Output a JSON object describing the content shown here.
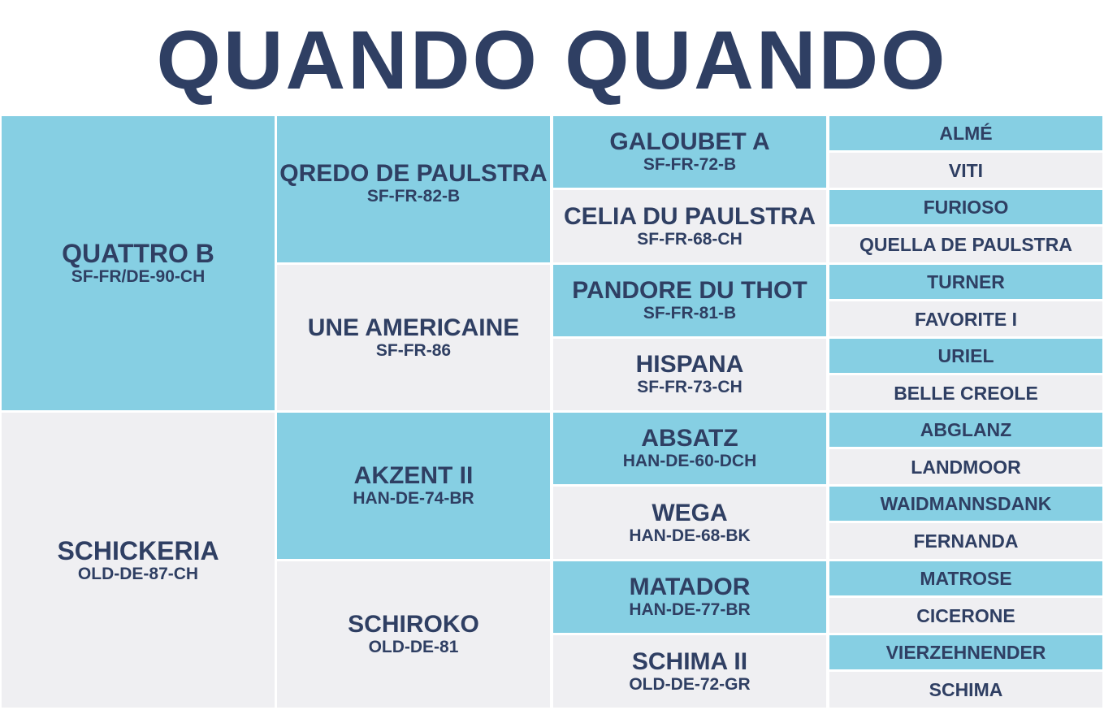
{
  "title": "QUANDO QUANDO",
  "colors": {
    "text": "#2f3f63",
    "blue": "#86cfe3",
    "grey": "#efeff2"
  },
  "sire": {
    "name": "QUATTRO B",
    "reg": "SF-FR/DE-90-CH",
    "sire": {
      "name": "QREDO DE PAULSTRA",
      "reg": "SF-FR-82-B",
      "sire": {
        "name": "GALOUBET A",
        "reg": "SF-FR-72-B",
        "sire": "ALMÉ",
        "dam": "VITI"
      },
      "dam": {
        "name": "CELIA DU PAULSTRA",
        "reg": "SF-FR-68-CH",
        "sire": "FURIOSO",
        "dam": "QUELLA DE PAULSTRA"
      }
    },
    "dam": {
      "name": "UNE AMERICAINE",
      "reg": "SF-FR-86",
      "sire": {
        "name": "PANDORE DU THOT",
        "reg": "SF-FR-81-B",
        "sire": "TURNER",
        "dam": "FAVORITE I"
      },
      "dam": {
        "name": "HISPANA",
        "reg": "SF-FR-73-CH",
        "sire": "URIEL",
        "dam": "BELLE CREOLE"
      }
    }
  },
  "dam": {
    "name": "SCHICKERIA",
    "reg": "OLD-DE-87-CH",
    "sire": {
      "name": "AKZENT II",
      "reg": "HAN-DE-74-BR",
      "sire": {
        "name": "ABSATZ",
        "reg": "HAN-DE-60-DCH",
        "sire": "ABGLANZ",
        "dam": "LANDMOOR"
      },
      "dam": {
        "name": "WEGA",
        "reg": "HAN-DE-68-BK",
        "sire": "WAIDMANNSDANK",
        "dam": "FERNANDA"
      }
    },
    "dam": {
      "name": "SCHIROKO",
      "reg": "OLD-DE-81",
      "sire": {
        "name": "MATADOR",
        "reg": "HAN-DE-77-BR",
        "sire": "MATROSE",
        "dam": "CICERONE"
      },
      "dam": {
        "name": "SCHIMA II",
        "reg": "OLD-DE-72-GR",
        "sire": "VIERZEHNENDER",
        "dam": "SCHIMA"
      }
    }
  }
}
